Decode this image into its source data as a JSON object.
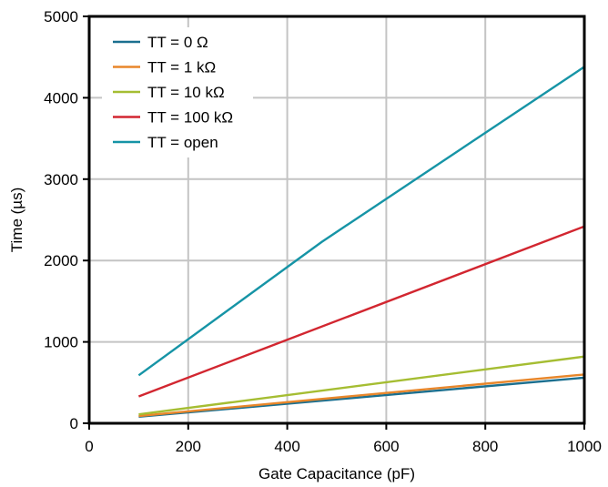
{
  "chart_data": {
    "type": "line",
    "title": "",
    "xlabel": "Gate Capacitance (pF)",
    "ylabel": "Time (µs)",
    "xlim": [
      0,
      1000
    ],
    "ylim": [
      0,
      5000
    ],
    "xticks": [
      0,
      200,
      400,
      600,
      800,
      1000
    ],
    "yticks": [
      0,
      1000,
      2000,
      3000,
      4000,
      5000
    ],
    "grid": true,
    "legend_position": "top-left",
    "series": [
      {
        "name": "TT = 0 Ω",
        "color": "#1b6f8f",
        "x": [
          100,
          1000
        ],
        "y": [
          80,
          560
        ]
      },
      {
        "name": "TT = 1 kΩ",
        "color": "#e8862a",
        "x": [
          100,
          1000
        ],
        "y": [
          90,
          600
        ]
      },
      {
        "name": "TT = 10 kΩ",
        "color": "#a5bd32",
        "x": [
          100,
          1000
        ],
        "y": [
          110,
          820
        ]
      },
      {
        "name": "TT = 100 kΩ",
        "color": "#d22630",
        "x": [
          100,
          1000
        ],
        "y": [
          330,
          2420
        ]
      },
      {
        "name": "TT = open",
        "color": "#1694a6",
        "x": [
          100,
          470,
          1000
        ],
        "y": [
          590,
          2230,
          4380
        ]
      }
    ]
  }
}
